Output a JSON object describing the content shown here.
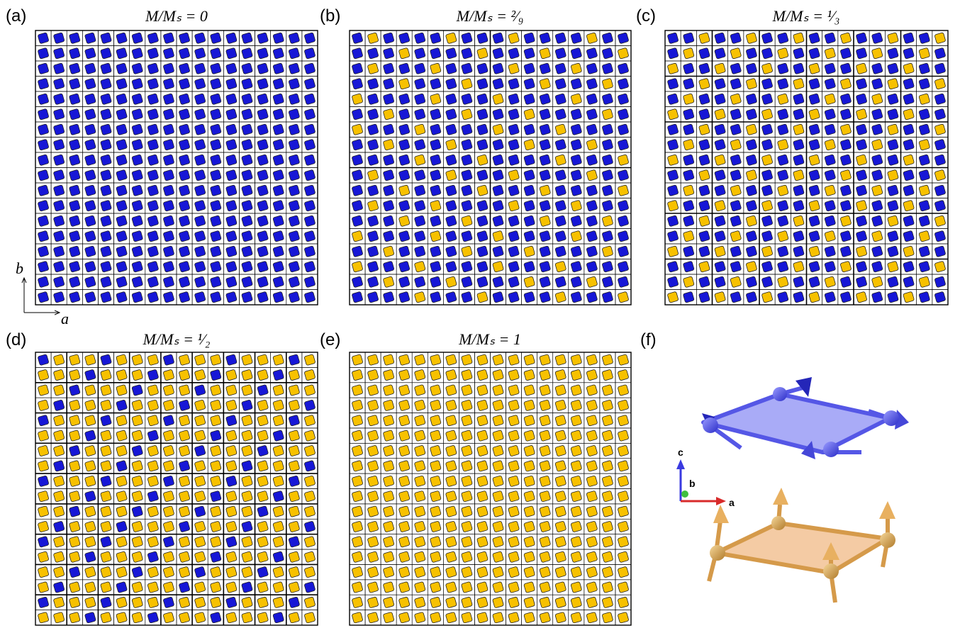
{
  "panels": [
    {
      "label": "(a)",
      "title": "M/Mₛ = 0"
    },
    {
      "label": "(b)",
      "title": "M/Mₛ = ²⁄₉"
    },
    {
      "label": "(c)",
      "title": "M/Mₛ = ¹⁄₃"
    },
    {
      "label": "(d)",
      "title": "M/Mₛ = ¹⁄₂"
    },
    {
      "label": "(e)",
      "title": "M/Mₛ = 1"
    },
    {
      "label": "(f)"
    }
  ],
  "lattice_axes": {
    "a": "a",
    "b": "b"
  },
  "crystal_axes": {
    "c": "c",
    "b": "b",
    "a": "a"
  }
}
